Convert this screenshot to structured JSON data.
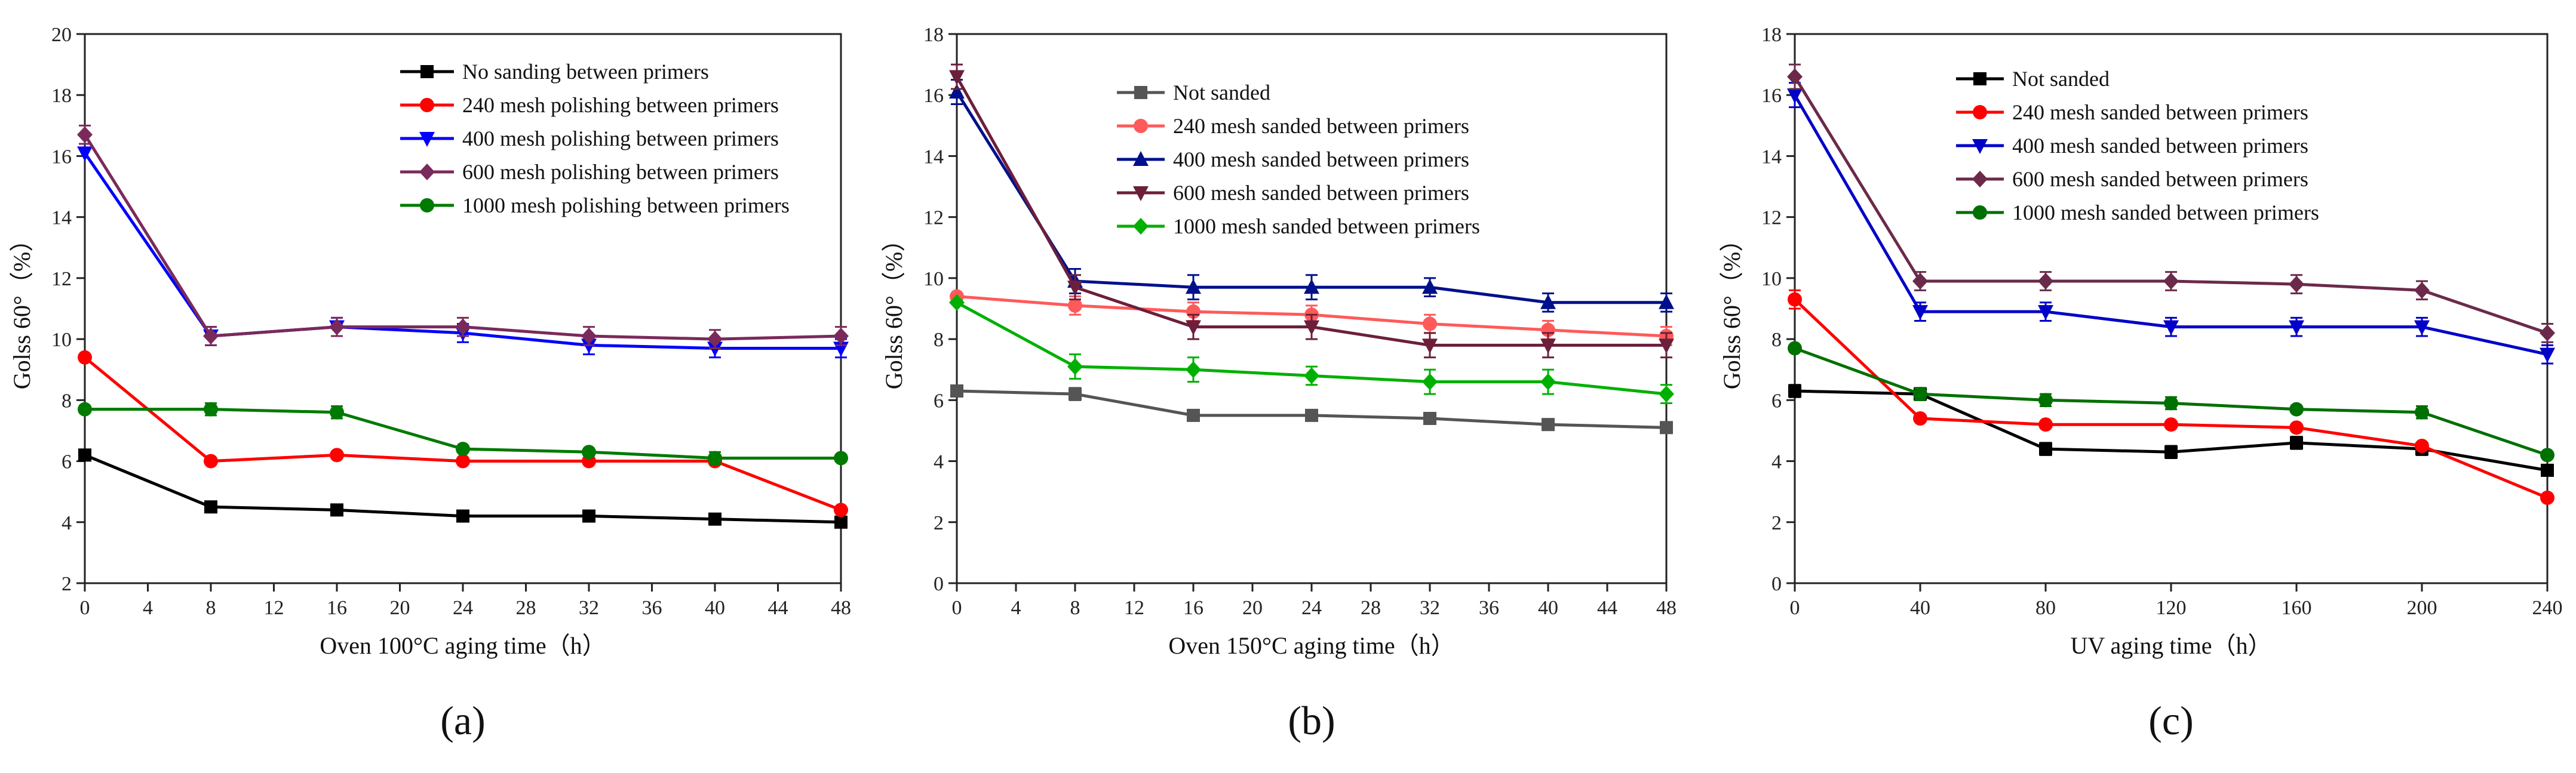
{
  "chart_data": [
    {
      "type": "line",
      "panel_label": "(a)",
      "xlabel": "Oven 100°C aging time（h）",
      "ylabel": "Golss 60°（%）",
      "xlim": [
        0,
        48
      ],
      "ylim": [
        2,
        20
      ],
      "xticks": [
        0,
        4,
        8,
        12,
        16,
        20,
        24,
        28,
        32,
        36,
        40,
        44,
        48
      ],
      "yticks": [
        2,
        4,
        6,
        8,
        10,
        12,
        14,
        16,
        18,
        20
      ],
      "legend_position": "top-right",
      "series": [
        {
          "name": "No sanding between primers",
          "color": "#000000",
          "marker": "square",
          "x": [
            0,
            8,
            16,
            24,
            32,
            40,
            48
          ],
          "values": [
            6.2,
            4.5,
            4.4,
            4.2,
            4.2,
            4.1,
            4.0
          ],
          "err": [
            0,
            0,
            0,
            0,
            0,
            0,
            0
          ]
        },
        {
          "name": "240 mesh polishing between primers",
          "color": "#ff0000",
          "marker": "circle",
          "x": [
            0,
            8,
            16,
            24,
            32,
            40,
            48
          ],
          "values": [
            9.4,
            6.0,
            6.2,
            6.0,
            6.0,
            6.0,
            4.4
          ],
          "err": [
            0,
            0,
            0,
            0,
            0,
            0,
            0
          ]
        },
        {
          "name": "400 mesh polishing between primers",
          "color": "#0000ff",
          "marker": "triangle-down",
          "x": [
            0,
            8,
            16,
            24,
            32,
            40,
            48
          ],
          "values": [
            16.1,
            10.1,
            10.4,
            10.2,
            9.8,
            9.7,
            9.7
          ],
          "err": [
            0,
            0.3,
            0.3,
            0.3,
            0.3,
            0.3,
            0.3
          ]
        },
        {
          "name": "600 mesh polishing between primers",
          "color": "#7a2a5a",
          "marker": "diamond",
          "x": [
            0,
            8,
            16,
            24,
            32,
            40,
            48
          ],
          "values": [
            16.7,
            10.1,
            10.4,
            10.4,
            10.1,
            10.0,
            10.1
          ],
          "err": [
            0.3,
            0.3,
            0.3,
            0.3,
            0.3,
            0.3,
            0.3
          ]
        },
        {
          "name": "1000 mesh polishing between primers",
          "color": "#007a00",
          "marker": "circle",
          "x": [
            0,
            8,
            16,
            24,
            32,
            40,
            48
          ],
          "values": [
            7.7,
            7.7,
            7.6,
            6.4,
            6.3,
            6.1,
            6.1
          ],
          "err": [
            0,
            0.2,
            0.2,
            0,
            0,
            0.2,
            0
          ]
        }
      ]
    },
    {
      "type": "line",
      "panel_label": "(b)",
      "xlabel": "Oven 150°C aging time（h）",
      "ylabel": "Golss 60°（%）",
      "xlim": [
        0,
        48
      ],
      "ylim": [
        0,
        18
      ],
      "xticks": [
        0,
        4,
        8,
        12,
        16,
        20,
        24,
        28,
        32,
        36,
        40,
        44,
        48
      ],
      "yticks": [
        0,
        2,
        4,
        6,
        8,
        10,
        12,
        14,
        16,
        18
      ],
      "legend_position": "top-center",
      "series": [
        {
          "name": "Not sanded",
          "color": "#555555",
          "marker": "square",
          "x": [
            0,
            8,
            16,
            24,
            32,
            40,
            48
          ],
          "values": [
            6.3,
            6.2,
            5.5,
            5.5,
            5.4,
            5.2,
            5.1
          ],
          "err": [
            0,
            0.2,
            0,
            0,
            0,
            0,
            0
          ]
        },
        {
          "name": "240 mesh sanded between primers",
          "color": "#ff5a5a",
          "marker": "circle",
          "x": [
            0,
            8,
            16,
            24,
            32,
            40,
            48
          ],
          "values": [
            9.4,
            9.1,
            8.9,
            8.8,
            8.5,
            8.3,
            8.1
          ],
          "err": [
            0,
            0.3,
            0.3,
            0.3,
            0.3,
            0.3,
            0.3
          ]
        },
        {
          "name": "400 mesh sanded between primers",
          "color": "#00108c",
          "marker": "triangle-up",
          "x": [
            0,
            8,
            16,
            24,
            32,
            40,
            48
          ],
          "values": [
            16.1,
            9.9,
            9.7,
            9.7,
            9.7,
            9.2,
            9.2
          ],
          "err": [
            0.4,
            0.4,
            0.4,
            0.4,
            0.3,
            0.3,
            0.3
          ]
        },
        {
          "name": "600 mesh sanded between primers",
          "color": "#6b1f3a",
          "marker": "triangle-down",
          "x": [
            0,
            8,
            16,
            24,
            32,
            40,
            48
          ],
          "values": [
            16.6,
            9.7,
            8.4,
            8.4,
            7.8,
            7.8,
            7.8
          ],
          "err": [
            0.4,
            0.4,
            0.4,
            0.4,
            0.4,
            0.4,
            0.4
          ]
        },
        {
          "name": "1000 mesh sanded between primers",
          "color": "#00b000",
          "marker": "diamond",
          "x": [
            0,
            8,
            16,
            24,
            32,
            40,
            48
          ],
          "values": [
            9.2,
            7.1,
            7.0,
            6.8,
            6.6,
            6.6,
            6.2
          ],
          "err": [
            0,
            0.4,
            0.4,
            0.3,
            0.4,
            0.4,
            0.3
          ]
        }
      ]
    },
    {
      "type": "line",
      "panel_label": "(c)",
      "xlabel": "UV aging time（h）",
      "ylabel": "Golss 60°（%）",
      "xlim": [
        0,
        240
      ],
      "ylim": [
        0,
        18
      ],
      "xticks": [
        0,
        40,
        80,
        120,
        160,
        200,
        240
      ],
      "yticks": [
        0,
        2,
        4,
        6,
        8,
        10,
        12,
        14,
        16,
        18
      ],
      "legend_position": "top-center",
      "series": [
        {
          "name": "Not sanded",
          "color": "#000000",
          "marker": "square",
          "x": [
            0,
            40,
            80,
            120,
            160,
            200,
            240
          ],
          "values": [
            6.3,
            6.2,
            4.4,
            4.3,
            4.6,
            4.4,
            3.7
          ],
          "err": [
            0.2,
            0.2,
            0.2,
            0.2,
            0.2,
            0.2,
            0
          ]
        },
        {
          "name": "240 mesh sanded between primers",
          "color": "#ff0000",
          "marker": "circle",
          "x": [
            0,
            40,
            80,
            120,
            160,
            200,
            240
          ],
          "values": [
            9.3,
            5.4,
            5.2,
            5.2,
            5.1,
            4.5,
            2.8
          ],
          "err": [
            0.3,
            0,
            0,
            0,
            0,
            0,
            0
          ]
        },
        {
          "name": "400 mesh sanded between primers",
          "color": "#0000c8",
          "marker": "triangle-down",
          "x": [
            0,
            40,
            80,
            120,
            160,
            200,
            240
          ],
          "values": [
            16.0,
            8.9,
            8.9,
            8.4,
            8.4,
            8.4,
            7.5
          ],
          "err": [
            0.4,
            0.3,
            0.3,
            0.3,
            0.3,
            0.3,
            0.3
          ]
        },
        {
          "name": "600 mesh sanded between primers",
          "color": "#6b2a4a",
          "marker": "diamond",
          "x": [
            0,
            40,
            80,
            120,
            160,
            200,
            240
          ],
          "values": [
            16.6,
            9.9,
            9.9,
            9.9,
            9.8,
            9.6,
            8.2
          ],
          "err": [
            0.4,
            0.3,
            0.3,
            0.3,
            0.3,
            0.3,
            0.3
          ]
        },
        {
          "name": "1000 mesh sanded between primers",
          "color": "#007000",
          "marker": "circle",
          "x": [
            0,
            40,
            80,
            120,
            160,
            200,
            240
          ],
          "values": [
            7.7,
            6.2,
            6.0,
            5.9,
            5.7,
            5.6,
            4.2
          ],
          "err": [
            0,
            0.2,
            0.2,
            0.2,
            0,
            0.2,
            0
          ]
        }
      ]
    }
  ]
}
